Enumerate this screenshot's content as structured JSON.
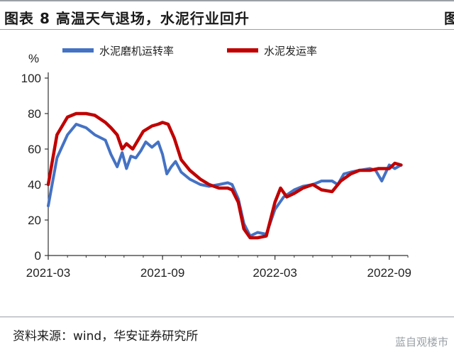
{
  "header": {
    "title": "图表 8  高温天气退场，水泥行业回升",
    "title_cut": "图"
  },
  "footer": {
    "source": "资料来源：wind，华安证券研究所",
    "watermark": "蓝自观楼市"
  },
  "chart_data": {
    "type": "line",
    "title": "图表 8  高温天气退场，水泥行业回升",
    "ylabel": "%",
    "xlabel": "",
    "ylim": [
      0,
      100
    ],
    "yticks": [
      0,
      20,
      40,
      60,
      80,
      100
    ],
    "xlim": [
      "2021-03-01",
      "2022-10-01"
    ],
    "xticks": [
      "2021-03",
      "2021-09",
      "2022-03",
      "2022-09"
    ],
    "grid": false,
    "legend": "top",
    "series": [
      {
        "name": "水泥磨机运转率",
        "color": "#4472c4",
        "x": [
          "2021-03-01",
          "2021-03-15",
          "2021-04-01",
          "2021-04-15",
          "2021-05-01",
          "2021-05-15",
          "2021-06-01",
          "2021-06-10",
          "2021-06-20",
          "2021-06-28",
          "2021-07-05",
          "2021-07-12",
          "2021-07-20",
          "2021-07-28",
          "2021-08-05",
          "2021-08-15",
          "2021-08-25",
          "2021-09-01",
          "2021-09-08",
          "2021-09-15",
          "2021-09-22",
          "2021-10-01",
          "2021-10-15",
          "2021-11-01",
          "2021-11-15",
          "2021-12-01",
          "2021-12-15",
          "2021-12-22",
          "2022-01-01",
          "2022-01-10",
          "2022-01-20",
          "2022-02-01",
          "2022-02-15",
          "2022-03-01",
          "2022-03-15",
          "2022-04-01",
          "2022-04-15",
          "2022-05-01",
          "2022-05-15",
          "2022-06-01",
          "2022-06-10",
          "2022-06-20",
          "2022-07-01",
          "2022-07-15",
          "2022-08-01",
          "2022-08-10",
          "2022-08-20",
          "2022-09-01",
          "2022-09-10",
          "2022-09-20"
        ],
        "values": [
          28,
          55,
          68,
          74,
          72,
          68,
          65,
          57,
          50,
          58,
          49,
          56,
          55,
          59,
          64,
          61,
          64,
          57,
          46,
          50,
          53,
          47,
          43,
          40,
          39,
          40,
          41,
          40,
          32,
          18,
          11,
          13,
          12,
          26,
          33,
          37,
          39,
          40,
          42,
          42,
          40,
          46,
          47,
          48,
          49,
          48,
          42,
          51,
          49,
          51
        ]
      },
      {
        "name": "水泥发运率",
        "color": "#c00000",
        "x": [
          "2021-03-01",
          "2021-03-15",
          "2021-04-01",
          "2021-04-15",
          "2021-05-01",
          "2021-05-15",
          "2021-06-01",
          "2021-06-10",
          "2021-06-20",
          "2021-06-28",
          "2021-07-05",
          "2021-07-15",
          "2021-08-01",
          "2021-08-15",
          "2021-08-25",
          "2021-09-01",
          "2021-09-10",
          "2021-09-20",
          "2021-10-01",
          "2021-10-15",
          "2021-11-01",
          "2021-11-15",
          "2021-12-01",
          "2021-12-15",
          "2021-12-22",
          "2022-01-01",
          "2022-01-10",
          "2022-01-20",
          "2022-02-01",
          "2022-02-15",
          "2022-03-01",
          "2022-03-10",
          "2022-03-20",
          "2022-04-01",
          "2022-04-15",
          "2022-05-01",
          "2022-05-15",
          "2022-06-01",
          "2022-06-15",
          "2022-07-01",
          "2022-07-15",
          "2022-08-01",
          "2022-08-15",
          "2022-09-01",
          "2022-09-10",
          "2022-09-20"
        ],
        "values": [
          40,
          68,
          78,
          80,
          80,
          79,
          75,
          72,
          68,
          60,
          63,
          60,
          70,
          73,
          74,
          75,
          74,
          66,
          54,
          48,
          43,
          40,
          38,
          38,
          37,
          30,
          15,
          10,
          10,
          11,
          30,
          38,
          33,
          35,
          38,
          40,
          37,
          36,
          42,
          46,
          48,
          48,
          49,
          49,
          52,
          51
        ]
      }
    ]
  }
}
